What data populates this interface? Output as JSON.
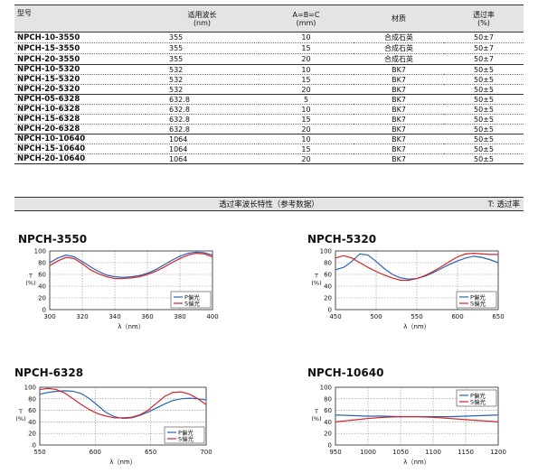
{
  "table": {
    "headers": [
      "型号",
      "适用波长\n(nm)",
      "A=B=C\n(mm)",
      "材质",
      "透过率\n(%)"
    ],
    "rows": [
      [
        "NPCH-10-3550",
        "355",
        "10",
        "合成石英",
        "50±7"
      ],
      [
        "NPCH-15-3550",
        "355",
        "15",
        "合成石英",
        "50±7"
      ],
      [
        "NPCH-20-3550",
        "355",
        "20",
        "合成石英",
        "50±7"
      ],
      [
        "NPCH-10-5320",
        "532",
        "10",
        "BK7",
        "50±5"
      ],
      [
        "NPCH-15-5320",
        "532",
        "15",
        "BK7",
        "50±5"
      ],
      [
        "NPCH-20-5320",
        "532",
        "20",
        "BK7",
        "50±5"
      ],
      [
        "NPCH-05-6328",
        "632.8",
        "5",
        "BK7",
        "50±5"
      ],
      [
        "NPCH-10-6328",
        "632.8",
        "10",
        "BK7",
        "50±5"
      ],
      [
        "NPCH-15-6328",
        "632.8",
        "15",
        "BK7",
        "50±5"
      ],
      [
        "NPCH-20-6328",
        "632.8",
        "20",
        "BK7",
        "50±5"
      ],
      [
        "NPCH-10-10640",
        "1064",
        "10",
        "BK7",
        "50±5"
      ],
      [
        "NPCH-15-10640",
        "1064",
        "15",
        "BK7",
        "50±5"
      ],
      [
        "NPCH-20-10640",
        "1064",
        "20",
        "BK7",
        "50±5"
      ]
    ]
  },
  "section": {
    "title": "透过率波长特性（参考数据）",
    "note": "T: 透过率"
  },
  "colors": {
    "p": "#2b63b3",
    "s": "#d3262b",
    "grid": "#8a8a8a",
    "header_bg": "#e4e4e4"
  },
  "chart_data": [
    {
      "type": "line",
      "title": "NPCH-3550",
      "xlabel": "λ（nm）",
      "ylabel": "T\n(%)",
      "xlim": [
        300,
        400
      ],
      "ylim": [
        0,
        100
      ],
      "xticks": [
        300,
        320,
        340,
        360,
        380,
        400
      ],
      "yticks": [
        0,
        20,
        40,
        60,
        80,
        100
      ],
      "legend": "bottom-right",
      "grid": true,
      "series": [
        {
          "name": "P偏光",
          "color": "#2b63b3",
          "x": [
            300,
            305,
            310,
            315,
            320,
            325,
            330,
            335,
            340,
            345,
            350,
            355,
            360,
            365,
            370,
            375,
            380,
            385,
            390,
            395,
            400
          ],
          "y": [
            80,
            88,
            93,
            90,
            82,
            73,
            65,
            59,
            56,
            55,
            56,
            58,
            62,
            68,
            76,
            84,
            91,
            96,
            98,
            97,
            93
          ]
        },
        {
          "name": "S偏光",
          "color": "#d3262b",
          "x": [
            300,
            305,
            310,
            315,
            320,
            325,
            330,
            335,
            340,
            345,
            350,
            355,
            360,
            365,
            370,
            375,
            380,
            385,
            390,
            395,
            400
          ],
          "y": [
            75,
            83,
            89,
            87,
            78,
            68,
            61,
            56,
            53,
            53,
            54,
            56,
            60,
            65,
            72,
            80,
            87,
            93,
            96,
            95,
            90
          ]
        }
      ]
    },
    {
      "type": "line",
      "title": "NPCH-5320",
      "xlabel": "λ（nm）",
      "ylabel": "T\n(%)",
      "xlim": [
        450,
        650
      ],
      "ylim": [
        0,
        100
      ],
      "xticks": [
        450,
        500,
        550,
        600,
        650
      ],
      "yticks": [
        0,
        20,
        40,
        60,
        80,
        100
      ],
      "legend": "bottom-right",
      "grid": true,
      "series": [
        {
          "name": "P偏光",
          "color": "#2b63b3",
          "x": [
            450,
            460,
            470,
            480,
            490,
            500,
            510,
            520,
            530,
            540,
            550,
            560,
            570,
            580,
            590,
            600,
            610,
            620,
            630,
            640,
            650
          ],
          "y": [
            68,
            72,
            82,
            95,
            93,
            82,
            70,
            60,
            54,
            52,
            53,
            57,
            63,
            70,
            77,
            83,
            88,
            91,
            89,
            85,
            80
          ]
        },
        {
          "name": "S偏光",
          "color": "#d3262b",
          "x": [
            450,
            460,
            470,
            480,
            490,
            500,
            510,
            520,
            530,
            540,
            550,
            560,
            570,
            580,
            590,
            600,
            610,
            620,
            630,
            640,
            650
          ],
          "y": [
            88,
            92,
            88,
            80,
            72,
            65,
            59,
            54,
            50,
            50,
            53,
            58,
            65,
            73,
            82,
            90,
            95,
            96,
            95,
            94,
            94
          ]
        }
      ]
    },
    {
      "type": "line",
      "title": "NPCH-6328",
      "xlabel": "λ（nm）",
      "ylabel": "T\n(%)",
      "xlim": [
        550,
        700
      ],
      "ylim": [
        0,
        100
      ],
      "xticks": [
        550,
        600,
        650,
        700
      ],
      "yticks": [
        0,
        20,
        40,
        60,
        80,
        100
      ],
      "legend": "bottom-right",
      "grid": true,
      "series": [
        {
          "name": "P偏光",
          "color": "#2b63b3",
          "x": [
            550,
            557.5,
            565,
            572.5,
            580,
            587.5,
            595,
            602.5,
            610,
            617.5,
            625,
            632.5,
            640,
            647.5,
            655,
            662.5,
            670,
            677.5,
            685,
            692.5,
            700
          ],
          "y": [
            88,
            91,
            93,
            94,
            93,
            89,
            80,
            68,
            56,
            49,
            46,
            47,
            51,
            57,
            64,
            71,
            77,
            80,
            81,
            80,
            78
          ]
        },
        {
          "name": "S偏光",
          "color": "#d3262b",
          "x": [
            550,
            557.5,
            565,
            572.5,
            580,
            587.5,
            595,
            602.5,
            610,
            617.5,
            625,
            632.5,
            640,
            647.5,
            655,
            662.5,
            670,
            677.5,
            685,
            692.5,
            700
          ],
          "y": [
            96,
            98,
            96,
            90,
            80,
            70,
            61,
            54,
            50,
            47,
            47,
            48,
            52,
            60,
            72,
            84,
            91,
            92,
            88,
            80,
            70
          ]
        }
      ]
    },
    {
      "type": "line",
      "title": "NPCH-10640",
      "xlabel": "λ（nm）",
      "ylabel": "T\n(%)",
      "xlim": [
        950,
        1200
      ],
      "ylim": [
        0,
        100
      ],
      "xticks": [
        950,
        1000,
        1050,
        1100,
        1150,
        1200
      ],
      "yticks": [
        0,
        20,
        40,
        60,
        80,
        100
      ],
      "legend": "top-right",
      "grid": true,
      "series": [
        {
          "name": "P偏光",
          "color": "#2b63b3",
          "x": [
            950,
            975,
            1000,
            1025,
            1050,
            1075,
            1100,
            1125,
            1150,
            1175,
            1200
          ],
          "y": [
            52,
            51,
            50,
            50,
            49,
            49,
            49,
            49,
            50,
            51,
            52
          ]
        },
        {
          "name": "S偏光",
          "color": "#d3262b",
          "x": [
            950,
            975,
            1000,
            1025,
            1050,
            1075,
            1100,
            1125,
            1150,
            1175,
            1200
          ],
          "y": [
            40,
            43,
            46,
            48,
            49,
            49,
            48,
            46,
            44,
            42,
            40
          ]
        }
      ]
    }
  ]
}
